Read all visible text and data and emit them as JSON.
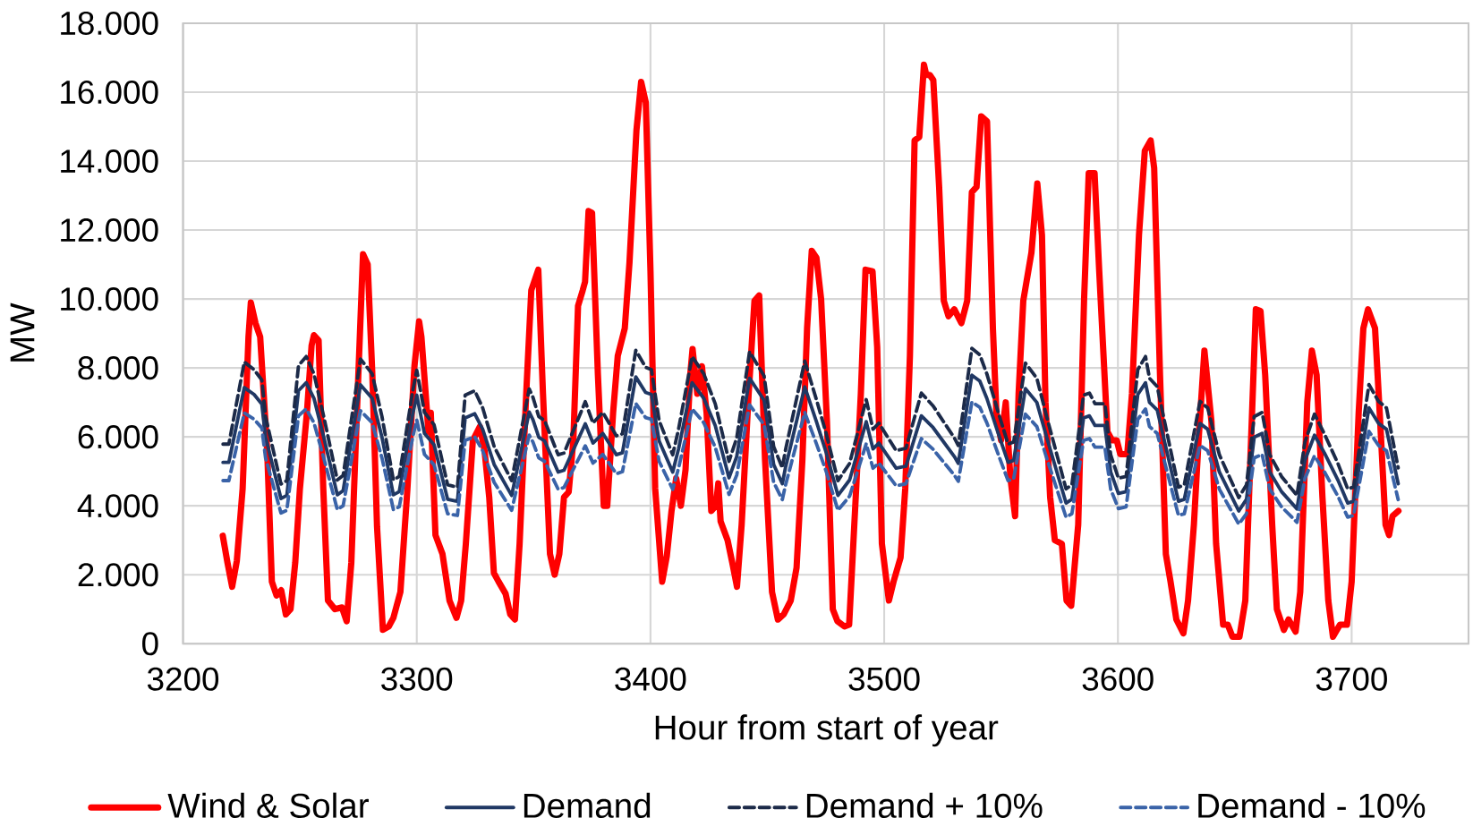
{
  "chart_data": {
    "type": "line",
    "xlabel": "Hour from start of year",
    "ylabel": "MW",
    "xlim": [
      3200,
      3750
    ],
    "xticks": [
      3200,
      3300,
      3400,
      3500,
      3600,
      3700
    ],
    "ylim": [
      0,
      18000
    ],
    "yticks": [
      {
        "value": 0,
        "label": "0"
      },
      {
        "value": 2000,
        "label": "2.000"
      },
      {
        "value": 4000,
        "label": "4.000"
      },
      {
        "value": 6000,
        "label": "6.000"
      },
      {
        "value": 8000,
        "label": "8.000"
      },
      {
        "value": 10000,
        "label": "10.000"
      },
      {
        "value": 12000,
        "label": "12.000"
      },
      {
        "value": 14000,
        "label": "14.000"
      },
      {
        "value": 16000,
        "label": "16.000"
      },
      {
        "value": 18000,
        "label": "18.000"
      }
    ],
    "grid": true,
    "legend": "bottom",
    "marker": "none",
    "line_style": "solid",
    "series": [
      {
        "name": "Wind & Solar",
        "color": "#ff0000",
        "x": [
          3217,
          3219,
          3221,
          3223,
          3225.5,
          3228,
          3229,
          3231,
          3233,
          3236,
          3238,
          3240,
          3242,
          3244,
          3246,
          3248,
          3250,
          3253,
          3255,
          3256,
          3258,
          3260,
          3262,
          3265,
          3268,
          3270,
          3272,
          3275,
          3277,
          3279,
          3281,
          3283,
          3285.5,
          3288,
          3290,
          3293,
          3296,
          3299,
          3301,
          3302,
          3305,
          3306,
          3308,
          3311,
          3314,
          3317,
          3319,
          3321,
          3324,
          3327,
          3329,
          3331,
          3333,
          3335,
          3338,
          3340,
          3342,
          3344,
          3347,
          3349,
          3352,
          3354,
          3357,
          3359,
          3361,
          3363,
          3365,
          3367,
          3369,
          3371,
          3372,
          3373.5,
          3375,
          3377.5,
          3380,
          3381.5,
          3384,
          3386,
          3389,
          3391,
          3394,
          3396,
          3398,
          3400,
          3402,
          3405,
          3407,
          3409,
          3411,
          3413,
          3415,
          3417,
          3418,
          3420,
          3422,
          3424,
          3426,
          3428,
          3429,
          3430,
          3433,
          3435,
          3437,
          3439,
          3442,
          3444.5,
          3446.5,
          3449,
          3452,
          3454.5,
          3457,
          3460,
          3462.5,
          3465,
          3467,
          3469,
          3471,
          3473,
          3475.5,
          3478,
          3480,
          3483,
          3485,
          3488,
          3490,
          3492,
          3495,
          3497,
          3499,
          3502,
          3504,
          3507,
          3509,
          3511,
          3513,
          3515,
          3517,
          3518,
          3519.5,
          3521,
          3523.5,
          3525.5,
          3527.5,
          3530,
          3533,
          3535.5,
          3537.5,
          3539.5,
          3541.5,
          3544,
          3546.5,
          3548,
          3550,
          3552,
          3554,
          3556,
          3557.5,
          3559.5,
          3563,
          3565.5,
          3567.5,
          3569,
          3571,
          3573,
          3576,
          3578,
          3580,
          3583,
          3585.5,
          3587.5,
          3590,
          3592,
          3595.5,
          3597.5,
          3599.5,
          3601,
          3604,
          3606,
          3609,
          3611.5,
          3614,
          3615.5,
          3618,
          3620.5,
          3622.5,
          3625,
          3628,
          3630,
          3632.5,
          3634.5,
          3637,
          3640,
          3642,
          3645,
          3647,
          3649,
          3652,
          3654.5,
          3656.5,
          3659,
          3661,
          3663,
          3666,
          3668,
          3671,
          3673,
          3676,
          3678,
          3681,
          3683,
          3685,
          3687.5,
          3690,
          3692,
          3695,
          3698,
          3700,
          3703,
          3705,
          3707,
          3710,
          3712,
          3714.5,
          3716,
          3717.5,
          3720
        ],
        "values": [
          3130,
          2350,
          1650,
          2400,
          4500,
          8900,
          9900,
          9300,
          8900,
          5600,
          1800,
          1400,
          1550,
          850,
          1000,
          2350,
          4500,
          6700,
          8650,
          8950,
          8800,
          4500,
          1250,
          1000,
          1050,
          650,
          2350,
          7800,
          11300,
          11000,
          7800,
          3400,
          400,
          500,
          750,
          1500,
          4500,
          8050,
          9350,
          8900,
          6150,
          6700,
          3150,
          2600,
          1250,
          750,
          1250,
          2900,
          5900,
          6300,
          5600,
          4250,
          2050,
          1800,
          1450,
          850,
          700,
          2900,
          7500,
          10250,
          10850,
          7250,
          2600,
          2000,
          2600,
          4250,
          4400,
          5900,
          9800,
          10250,
          10500,
          12550,
          12500,
          7800,
          4000,
          4000,
          6700,
          8350,
          9150,
          11050,
          14900,
          16300,
          15700,
          10800,
          4500,
          1800,
          2550,
          3850,
          4800,
          4000,
          5050,
          7800,
          8550,
          7250,
          8050,
          6700,
          3850,
          4000,
          4650,
          3550,
          3000,
          2350,
          1650,
          3450,
          7250,
          9950,
          10100,
          5350,
          1500,
          700,
          850,
          1250,
          2200,
          5350,
          9150,
          11400,
          11200,
          10000,
          6450,
          1000,
          650,
          500,
          550,
          4500,
          7250,
          10850,
          10800,
          8600,
          2900,
          1250,
          1800,
          2500,
          4500,
          8350,
          14600,
          14700,
          16800,
          16500,
          16500,
          16350,
          13250,
          9950,
          9500,
          9700,
          9300,
          9950,
          13100,
          13250,
          15300,
          15150,
          9150,
          6700,
          5900,
          7000,
          4800,
          3700,
          7250,
          9950,
          11350,
          13350,
          11850,
          7000,
          4250,
          3000,
          2900,
          1250,
          1100,
          3450,
          9950,
          13650,
          13650,
          10800,
          6150,
          5900,
          5900,
          5500,
          5500,
          7250,
          11850,
          14300,
          14600,
          13800,
          7800,
          2600,
          1800,
          700,
          300,
          1250,
          3450,
          5900,
          8500,
          6450,
          2900,
          550,
          550,
          200,
          200,
          1250,
          5050,
          9700,
          9650,
          7800,
          3450,
          1000,
          400,
          700,
          350,
          1500,
          7000,
          8500,
          7800,
          4250,
          1250,
          200,
          550,
          550,
          1800,
          6700,
          9150,
          9700,
          9150,
          6700,
          3450,
          3150,
          3700,
          3850
        ]
      },
      {
        "name": "Demand",
        "color": "#203864",
        "x": [
          3217.1,
          3219.6,
          3226.2,
          3230.4,
          3233.7,
          3235.3,
          3241.9,
          3244.4,
          3249.4,
          3252.7,
          3256,
          3260.2,
          3266,
          3268.5,
          3275.9,
          3280.9,
          3285.1,
          3290,
          3292.5,
          3298.3,
          3300,
          3303.3,
          3307.4,
          3313.2,
          3317.4,
          3320.7,
          3324.8,
          3328.2,
          3333.1,
          3340.6,
          3348.1,
          3349.7,
          3352.2,
          3354.7,
          3360.5,
          3363,
          3372.1,
          3375.4,
          3379.6,
          3385.4,
          3388,
          3393.7,
          3397.9,
          3400.4,
          3403.7,
          3409.5,
          3412,
          3417.8,
          3422.8,
          3427.7,
          3433.6,
          3436.9,
          3442.4,
          3448.6,
          3452.7,
          3456.4,
          3457.7,
          3466,
          3471,
          3475.2,
          3480.2,
          3485.2,
          3492.3,
          3495.2,
          3497.7,
          3505.1,
          3509.3,
          3515.9,
          3520.9,
          3530,
          3531.7,
          3537.5,
          3540.9,
          3543.9,
          3548.8,
          3553,
          3555.4,
          3560.4,
          3565.3,
          3569.5,
          3577.8,
          3580.3,
          3585.3,
          3587.8,
          3590.2,
          3594.4,
          3596.9,
          3600.2,
          3603.5,
          3608.5,
          3611.8,
          3613.5,
          3616.8,
          3621.8,
          3625.9,
          3628.4,
          3635.1,
          3638.4,
          3643.4,
          3651.7,
          3655,
          3658.3,
          3661.7,
          3665,
          3670,
          3676.6,
          3680,
          3684.1,
          3688.3,
          3694.1,
          3698.3,
          3700.8,
          3707.4,
          3711.5,
          3714.9,
          3719.9
        ],
        "values": [
          5260,
          5260,
          7430,
          7230,
          6950,
          5990,
          4210,
          4300,
          7340,
          7570,
          7120,
          5990,
          4320,
          4440,
          7510,
          7120,
          5990,
          4320,
          4410,
          6670,
          7210,
          6100,
          5770,
          4190,
          4130,
          6550,
          6670,
          6220,
          5200,
          4300,
          6720,
          6500,
          5990,
          5880,
          4980,
          5030,
          6380,
          5820,
          6100,
          5480,
          5540,
          7740,
          7290,
          7230,
          5880,
          4980,
          5650,
          7570,
          7120,
          6330,
          4810,
          5430,
          7700,
          7060,
          5200,
          4640,
          5090,
          7450,
          6440,
          5540,
          4300,
          4750,
          6440,
          5650,
          5820,
          5090,
          5150,
          6610,
          6270,
          5430,
          5230,
          7790,
          7620,
          7120,
          6100,
          5260,
          5320,
          7400,
          7000,
          5990,
          4080,
          4190,
          6550,
          6610,
          6330,
          6330,
          4980,
          4360,
          4410,
          7230,
          7570,
          7000,
          6780,
          5320,
          4130,
          4190,
          6390,
          6220,
          4980,
          3850,
          4190,
          5990,
          6100,
          4980,
          4410,
          3910,
          5320,
          6050,
          5540,
          4750,
          4080,
          4130,
          6840,
          6390,
          6220,
          4640
        ]
      },
      {
        "name": "Demand + 10%",
        "color": "#1c2a48",
        "line_style": "dashed",
        "x": [
          3217.1,
          3219.6,
          3226.2,
          3230.4,
          3233.7,
          3235.3,
          3241.9,
          3244.4,
          3249.4,
          3252.7,
          3256,
          3260.2,
          3266,
          3268.5,
          3275.9,
          3280.9,
          3285.1,
          3290,
          3292.5,
          3298.3,
          3300,
          3303.3,
          3307.4,
          3313.2,
          3317.4,
          3320.7,
          3324.8,
          3328.2,
          3333.1,
          3340.6,
          3348.1,
          3349.7,
          3352.2,
          3354.7,
          3360.5,
          3363,
          3372.1,
          3375.4,
          3379.6,
          3385.4,
          3388,
          3393.7,
          3397.9,
          3400.4,
          3403.7,
          3409.5,
          3412,
          3417.8,
          3422.8,
          3427.7,
          3433.6,
          3436.9,
          3442.4,
          3448.6,
          3452.7,
          3456.4,
          3457.7,
          3466,
          3471,
          3475.2,
          3480.2,
          3485.2,
          3492.3,
          3495.2,
          3497.7,
          3505.1,
          3509.3,
          3515.9,
          3520.9,
          3530,
          3531.7,
          3537.5,
          3540.9,
          3543.9,
          3548.8,
          3553,
          3555.4,
          3560.4,
          3565.3,
          3569.5,
          3577.8,
          3580.3,
          3585.3,
          3587.8,
          3590.2,
          3594.4,
          3596.9,
          3600.2,
          3603.5,
          3608.5,
          3611.8,
          3613.5,
          3616.8,
          3621.8,
          3625.9,
          3628.4,
          3635.1,
          3638.4,
          3643.4,
          3651.7,
          3655,
          3658.3,
          3661.7,
          3665,
          3670,
          3676.6,
          3680,
          3684.1,
          3688.3,
          3694.1,
          3698.3,
          3700.8,
          3707.4,
          3711.5,
          3714.9,
          3719.9
        ],
        "values": [
          5790,
          5790,
          8170,
          7950,
          7650,
          6590,
          4630,
          4730,
          8070,
          8330,
          7830,
          6590,
          4750,
          4880,
          8260,
          7830,
          6590,
          4750,
          4850,
          7340,
          7930,
          6710,
          6350,
          4610,
          4540,
          7210,
          7340,
          6840,
          5720,
          4730,
          7390,
          7150,
          6590,
          6470,
          5480,
          5530,
          7020,
          6400,
          6710,
          6030,
          6090,
          8510,
          8020,
          7950,
          6470,
          5480,
          6220,
          8330,
          7830,
          6960,
          5290,
          5970,
          8470,
          7770,
          5720,
          5100,
          5600,
          8200,
          7080,
          6090,
          4730,
          5230,
          7080,
          6220,
          6400,
          5600,
          5670,
          7270,
          6900,
          5970,
          5750,
          8570,
          8380,
          7830,
          6710,
          5790,
          5850,
          8140,
          7700,
          6590,
          4490,
          4610,
          7210,
          7270,
          6960,
          6960,
          5480,
          4800,
          4850,
          7950,
          8330,
          7700,
          7460,
          5850,
          4540,
          4610,
          7030,
          6840,
          5480,
          4240,
          4610,
          6590,
          6710,
          5480,
          4850,
          4300,
          5850,
          6660,
          6090,
          5230,
          4490,
          4540,
          7520,
          7030,
          6840,
          5100
        ]
      },
      {
        "name": "Demand - 10%",
        "color": "#3a63a8",
        "line_style": "dashed",
        "x": [
          3217.1,
          3219.6,
          3226.2,
          3230.4,
          3233.7,
          3235.3,
          3241.9,
          3244.4,
          3249.4,
          3252.7,
          3256,
          3260.2,
          3266,
          3268.5,
          3275.9,
          3280.9,
          3285.1,
          3290,
          3292.5,
          3298.3,
          3300,
          3303.3,
          3307.4,
          3313.2,
          3317.4,
          3320.7,
          3324.8,
          3328.2,
          3333.1,
          3340.6,
          3348.1,
          3349.7,
          3352.2,
          3354.7,
          3360.5,
          3363,
          3372.1,
          3375.4,
          3379.6,
          3385.4,
          3388,
          3393.7,
          3397.9,
          3400.4,
          3403.7,
          3409.5,
          3412,
          3417.8,
          3422.8,
          3427.7,
          3433.6,
          3436.9,
          3442.4,
          3448.6,
          3452.7,
          3456.4,
          3457.7,
          3466,
          3471,
          3475.2,
          3480.2,
          3485.2,
          3492.3,
          3495.2,
          3497.7,
          3505.1,
          3509.3,
          3515.9,
          3520.9,
          3530,
          3531.7,
          3537.5,
          3540.9,
          3543.9,
          3548.8,
          3553,
          3555.4,
          3560.4,
          3565.3,
          3569.5,
          3577.8,
          3580.3,
          3585.3,
          3587.8,
          3590.2,
          3594.4,
          3596.9,
          3600.2,
          3603.5,
          3608.5,
          3611.8,
          3613.5,
          3616.8,
          3621.8,
          3625.9,
          3628.4,
          3635.1,
          3638.4,
          3643.4,
          3651.7,
          3655,
          3658.3,
          3661.7,
          3665,
          3670,
          3676.6,
          3680,
          3684.1,
          3688.3,
          3694.1,
          3698.3,
          3700.8,
          3707.4,
          3711.5,
          3714.9,
          3719.9
        ],
        "values": [
          4730,
          4730,
          6690,
          6510,
          6260,
          5390,
          3790,
          3870,
          6610,
          6810,
          6410,
          5390,
          3890,
          4000,
          6760,
          6410,
          5390,
          3890,
          3970,
          6000,
          6490,
          5490,
          5190,
          3770,
          3720,
          5900,
          6000,
          5600,
          4680,
          3870,
          6050,
          5850,
          5390,
          5290,
          4480,
          4530,
          5740,
          5240,
          5490,
          4930,
          4990,
          6970,
          6560,
          6510,
          5290,
          4480,
          5090,
          6810,
          6410,
          5700,
          4330,
          4890,
          6930,
          6350,
          4680,
          4180,
          4580,
          6710,
          5800,
          4990,
          3870,
          4280,
          5800,
          5090,
          5240,
          4580,
          4640,
          5950,
          5640,
          4890,
          4710,
          7010,
          6860,
          6410,
          5490,
          4730,
          4790,
          6660,
          6300,
          5390,
          3670,
          3770,
          5900,
          5950,
          5700,
          5700,
          4480,
          3920,
          3970,
          6510,
          6810,
          6300,
          6100,
          4790,
          3720,
          3770,
          5750,
          5600,
          4480,
          3470,
          3770,
          5390,
          5490,
          4480,
          3970,
          3520,
          4790,
          5450,
          4990,
          4280,
          3670,
          3720,
          6160,
          5750,
          5600,
          4180
        ]
      }
    ]
  }
}
